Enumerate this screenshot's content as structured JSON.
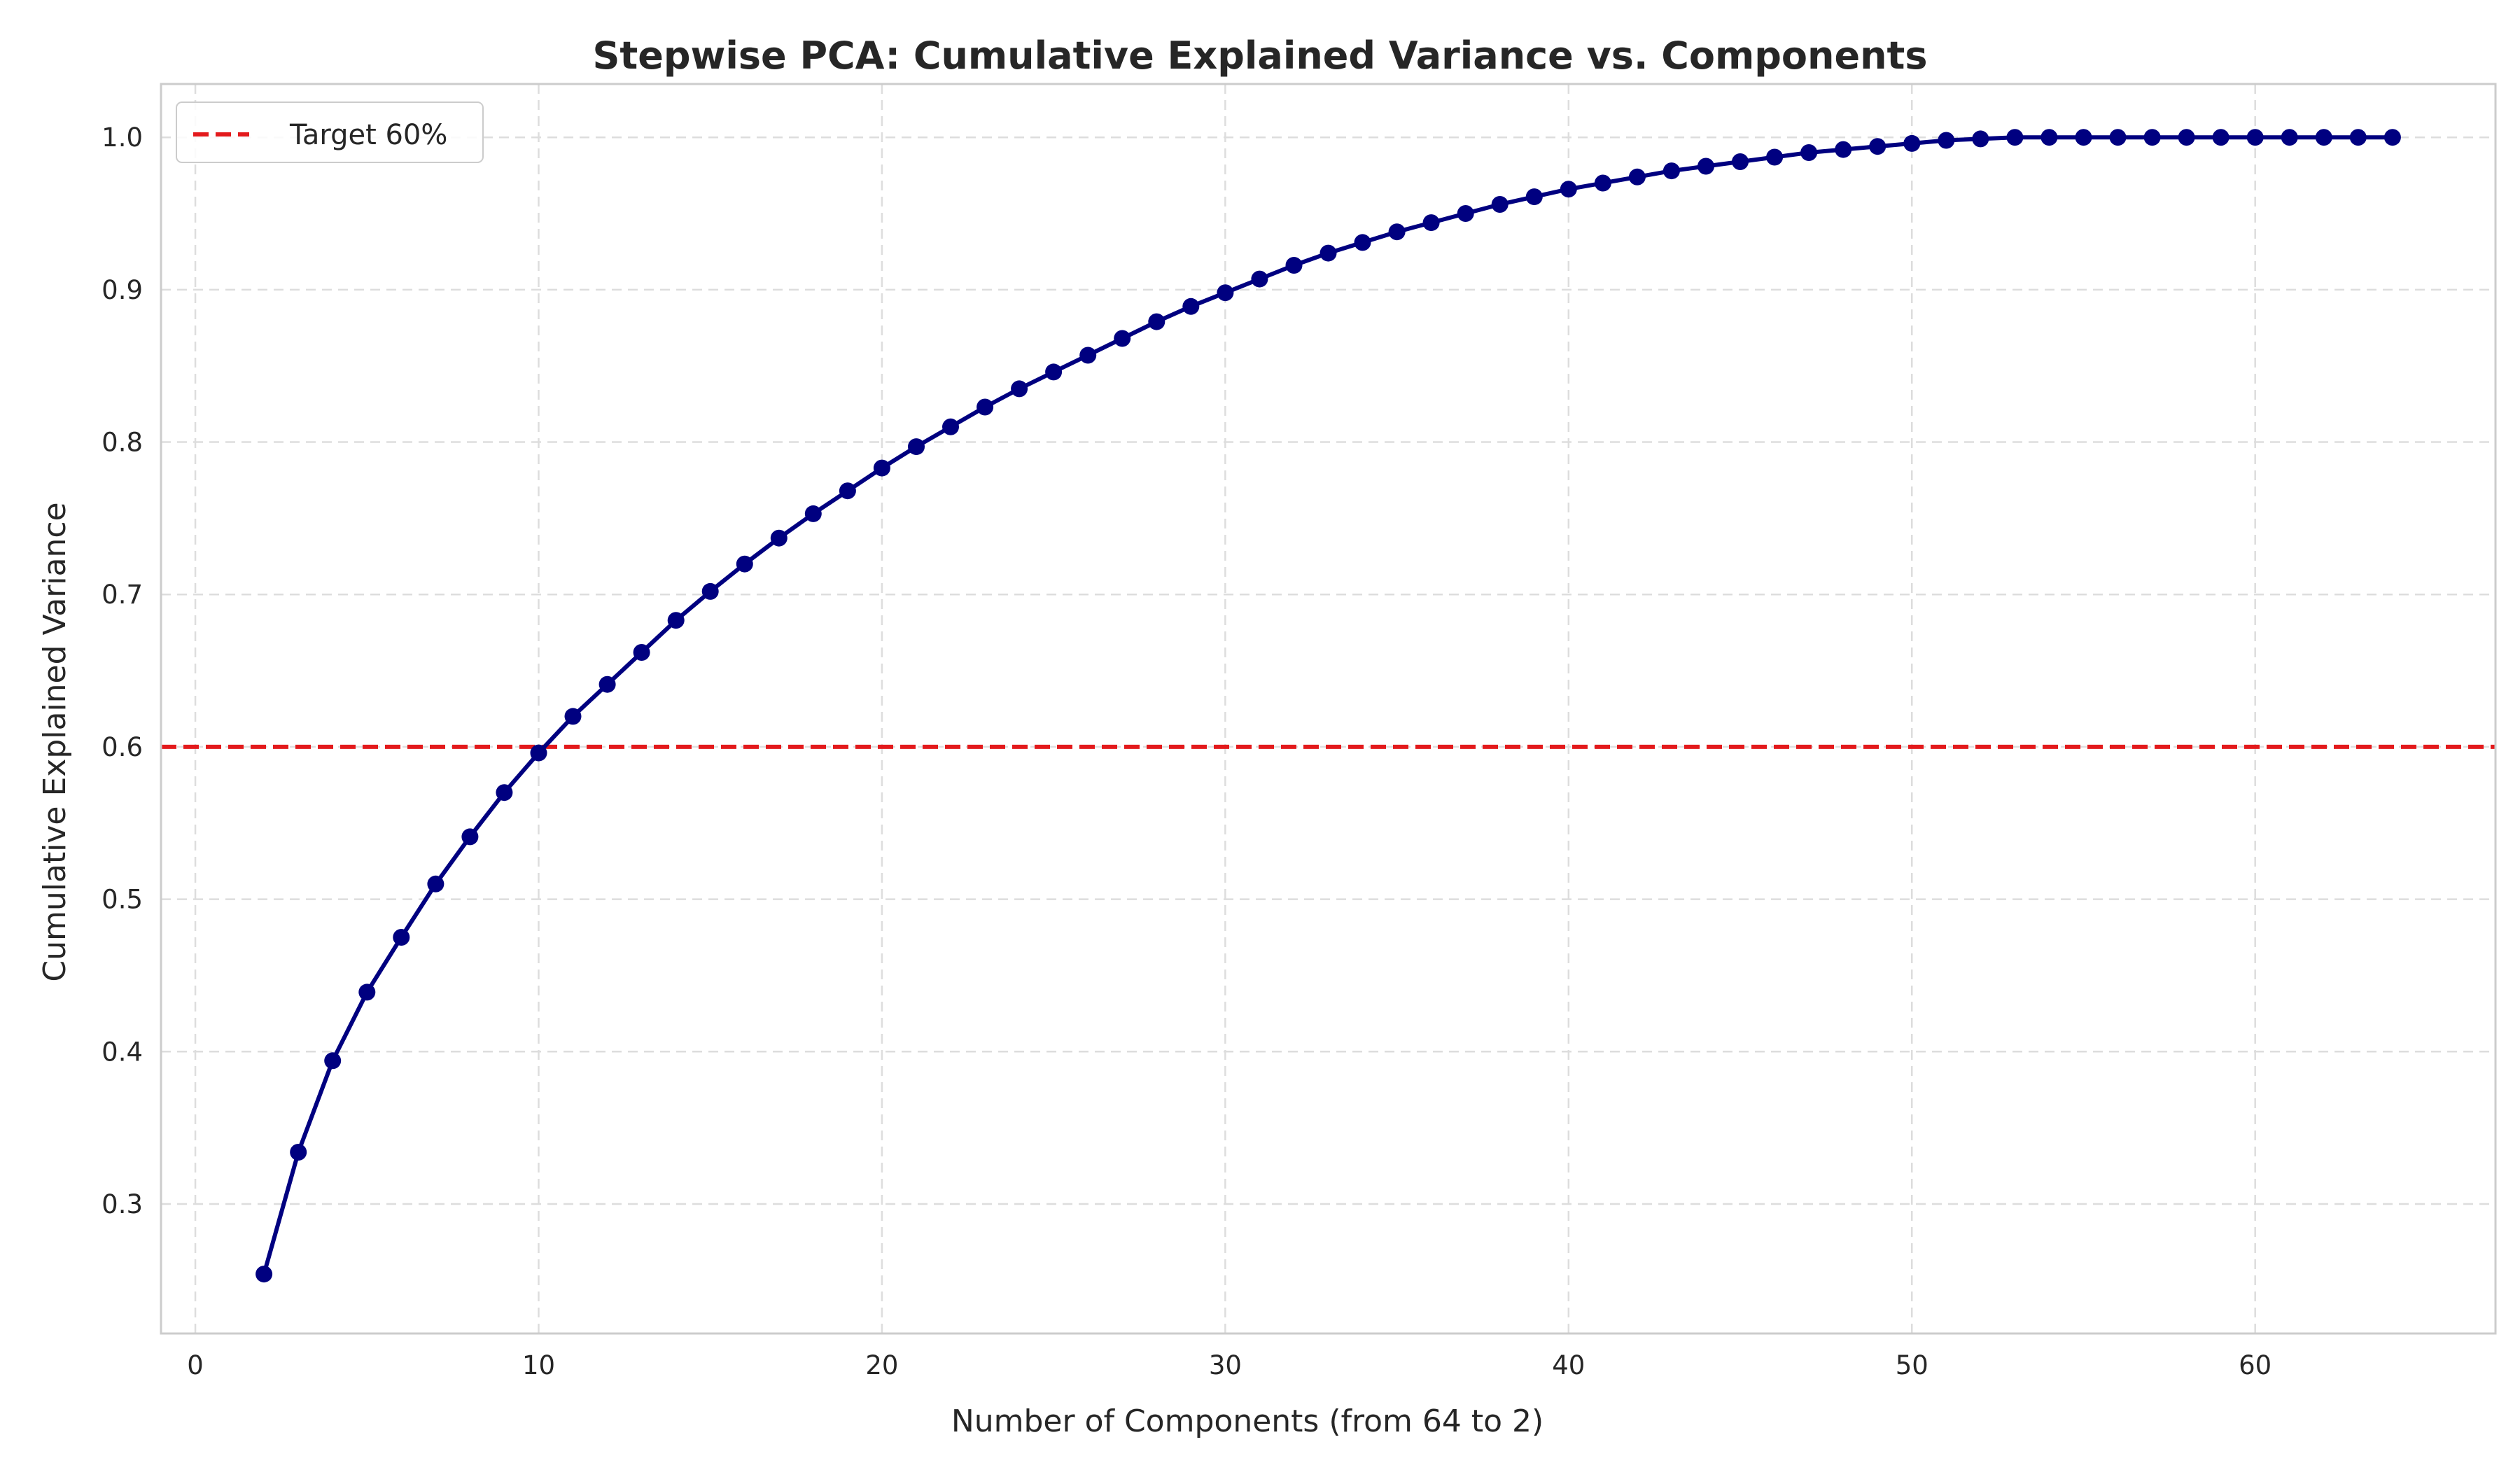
{
  "chart_data": {
    "type": "line",
    "title": "Stepwise PCA: Cumulative Explained Variance vs. Components",
    "xlabel": "Number of Components (from 64 to 2)",
    "ylabel": "Cumulative Explained Variance",
    "xlim": [
      -1,
      67
    ],
    "ylim": [
      0.215,
      1.035
    ],
    "xticks": [
      0,
      10,
      20,
      30,
      40,
      50,
      60
    ],
    "xtick_labels": [
      "0",
      "10",
      "20",
      "30",
      "40",
      "50",
      "60"
    ],
    "yticks": [
      0.3,
      0.4,
      0.5,
      0.6,
      0.7,
      0.8,
      0.9,
      1.0
    ],
    "ytick_labels": [
      "0.3",
      "0.4",
      "0.5",
      "0.6",
      "0.7",
      "0.8",
      "0.9",
      "1.0"
    ],
    "grid": true,
    "legend_position": "top-left",
    "series": [
      {
        "color": "#000080",
        "marker": "circle",
        "x": [
          2,
          3,
          4,
          5,
          6,
          7,
          8,
          9,
          10,
          11,
          12,
          13,
          14,
          15,
          16,
          17,
          18,
          19,
          20,
          21,
          22,
          23,
          24,
          25,
          26,
          27,
          28,
          29,
          30,
          31,
          32,
          33,
          34,
          35,
          36,
          37,
          38,
          39,
          40,
          41,
          42,
          43,
          44,
          45,
          46,
          47,
          48,
          49,
          50,
          51,
          52,
          53,
          54,
          55,
          56,
          57,
          58,
          59,
          60,
          61,
          62,
          63,
          64
        ],
        "values": [
          0.254,
          0.334,
          0.394,
          0.439,
          0.475,
          0.51,
          0.541,
          0.57,
          0.596,
          0.62,
          0.641,
          0.662,
          0.683,
          0.702,
          0.72,
          0.737,
          0.753,
          0.768,
          0.783,
          0.797,
          0.81,
          0.823,
          0.835,
          0.846,
          0.857,
          0.868,
          0.879,
          0.889,
          0.898,
          0.907,
          0.916,
          0.924,
          0.931,
          0.938,
          0.944,
          0.95,
          0.956,
          0.961,
          0.966,
          0.97,
          0.974,
          0.978,
          0.981,
          0.984,
          0.987,
          0.99,
          0.992,
          0.994,
          0.996,
          0.998,
          0.999,
          1.0,
          1.0,
          1.0,
          1.0,
          1.0,
          1.0,
          1.0,
          1.0,
          1.0,
          1.0,
          1.0,
          1.0
        ]
      }
    ],
    "reference_line": {
      "name": "Target 60%",
      "y": 0.6,
      "color": "#e31a1c",
      "style": "dashed"
    }
  }
}
